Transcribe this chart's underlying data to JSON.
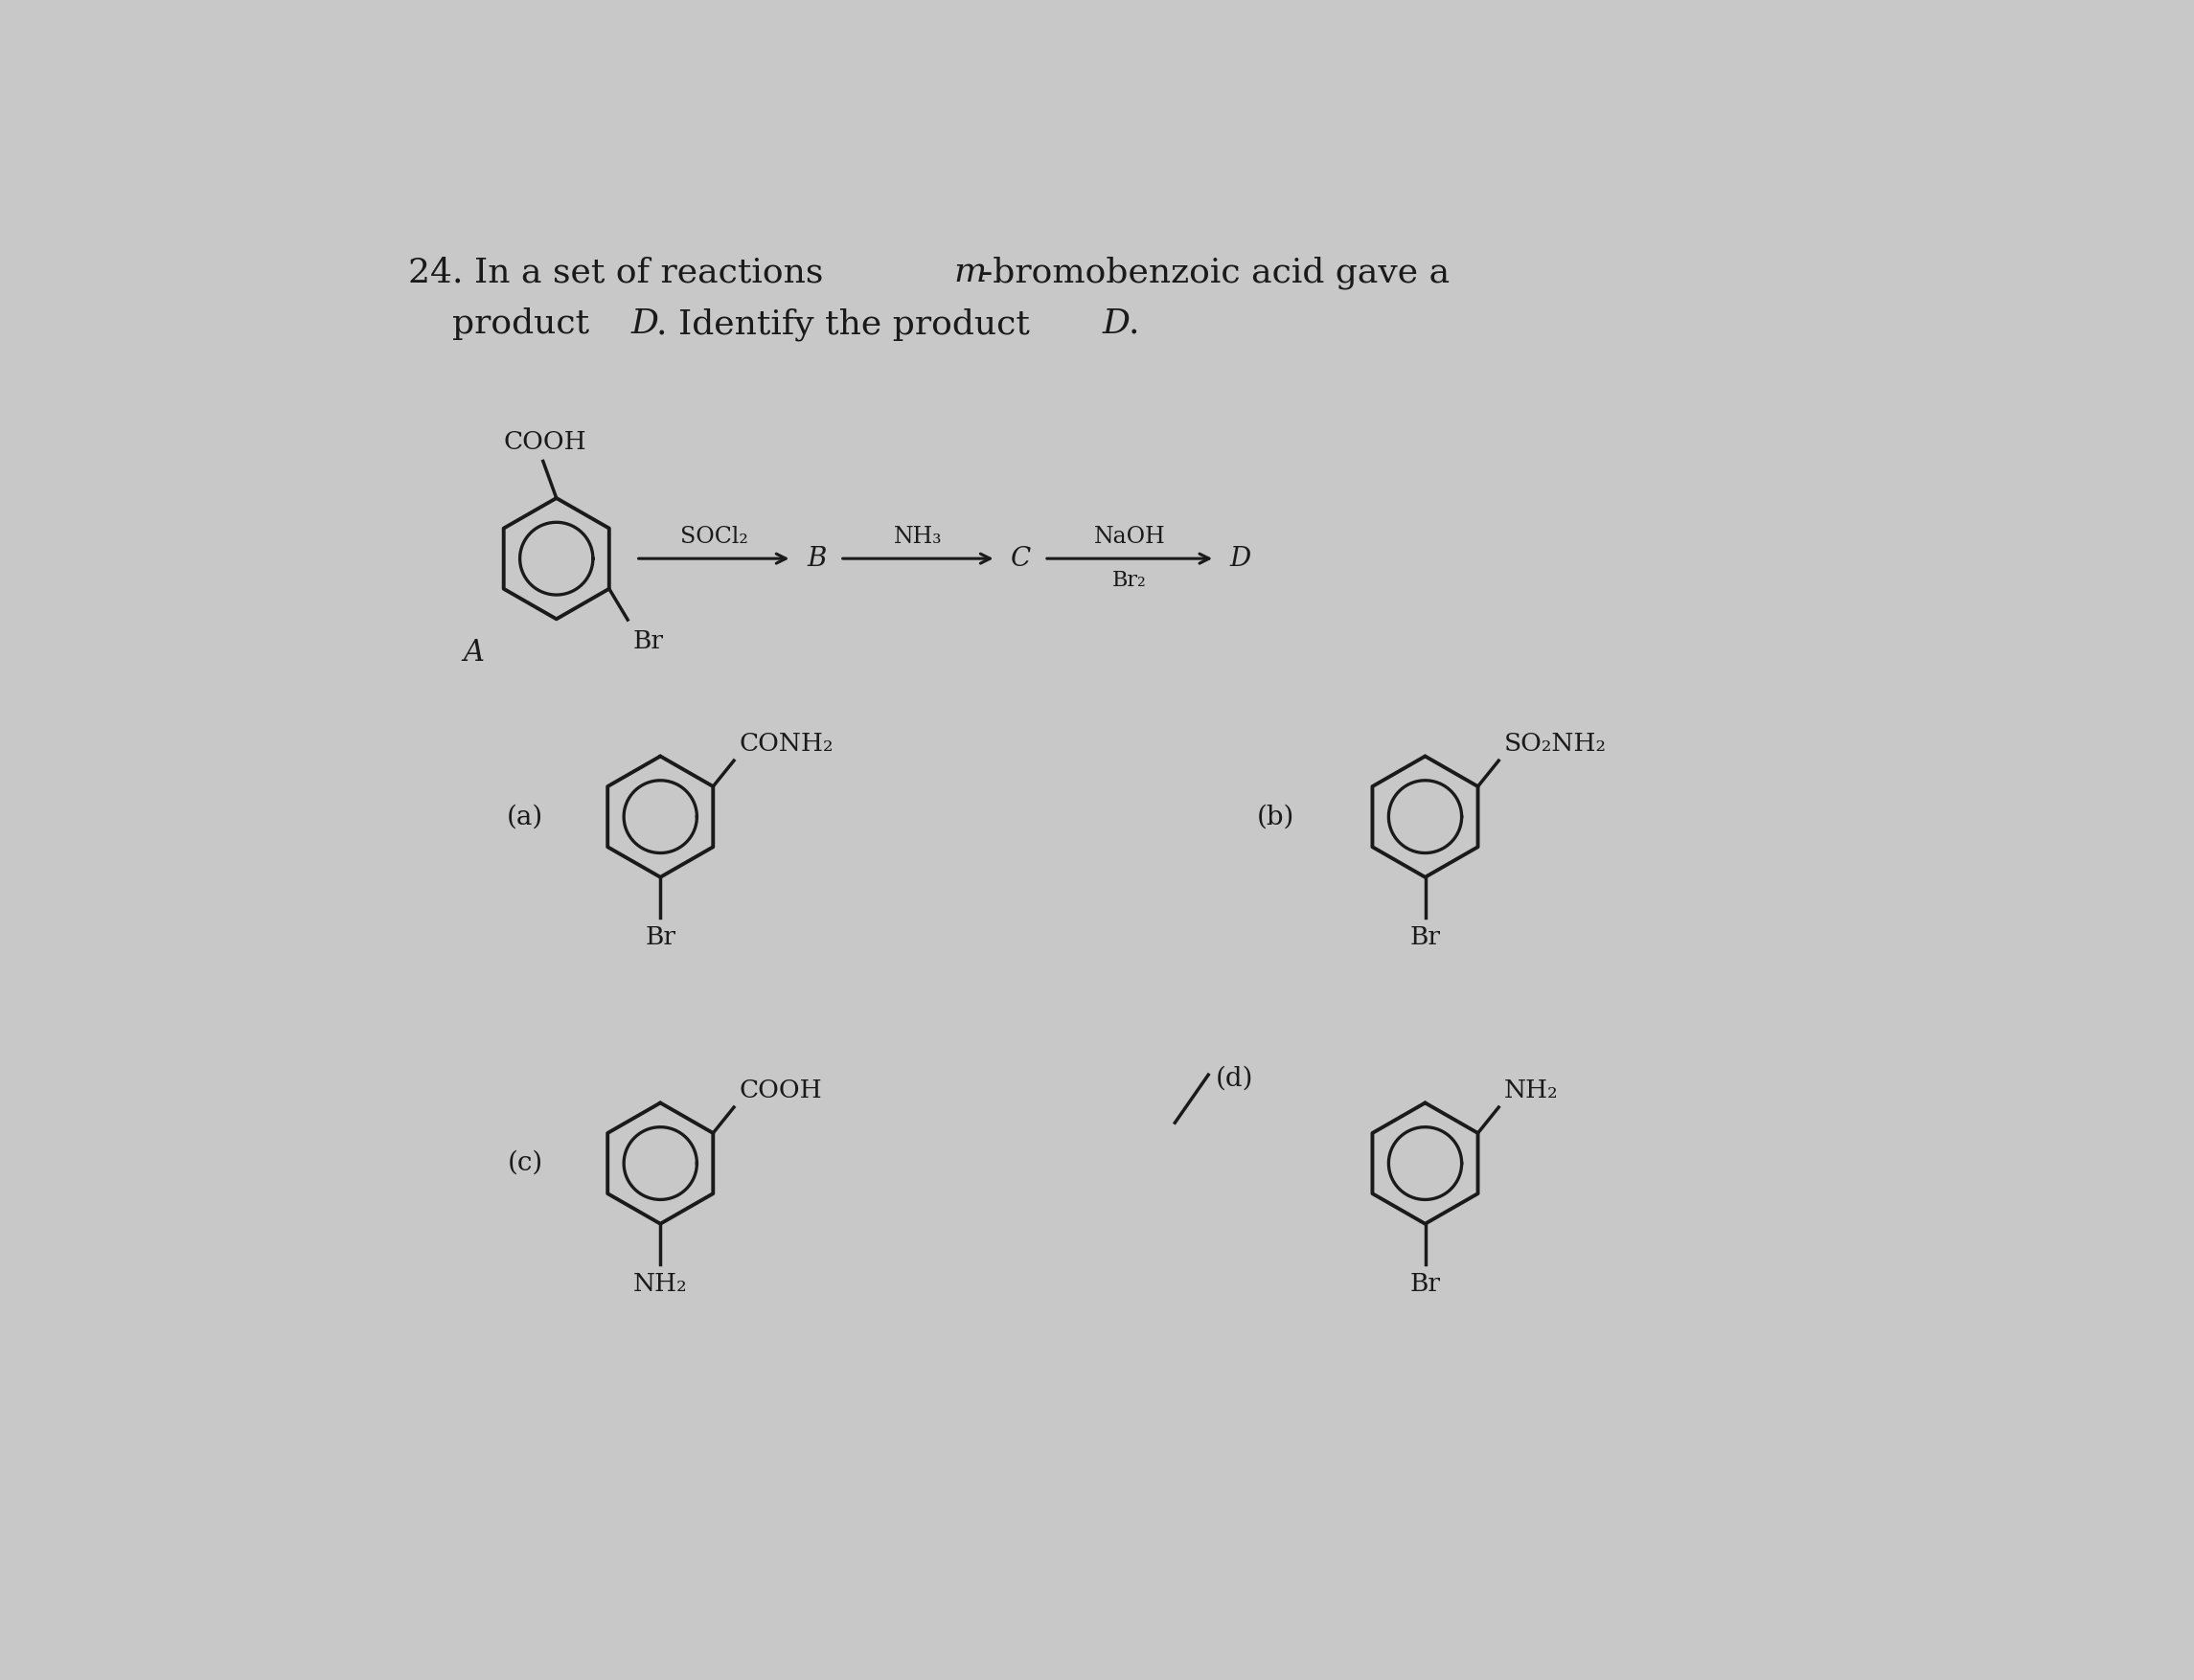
{
  "title_num": "24.",
  "title_text1": "In a set of reactions ",
  "title_m": "m",
  "title_text2": "-bromobenzoic acid gave a",
  "title_line2": "product ",
  "title_D_italic": "D",
  "title_text3": ". Identify the product ",
  "title_D2_italic": "D",
  "title_text4": ".",
  "bg_color": "#c8c8c8",
  "text_color": "#1a1a1a",
  "title_fontsize": 26,
  "label_fontsize": 20,
  "chem_fontsize": 19,
  "small_fontsize": 17,
  "ring_r": 0.82,
  "ring_lw": 2.8,
  "line_lw": 2.5
}
